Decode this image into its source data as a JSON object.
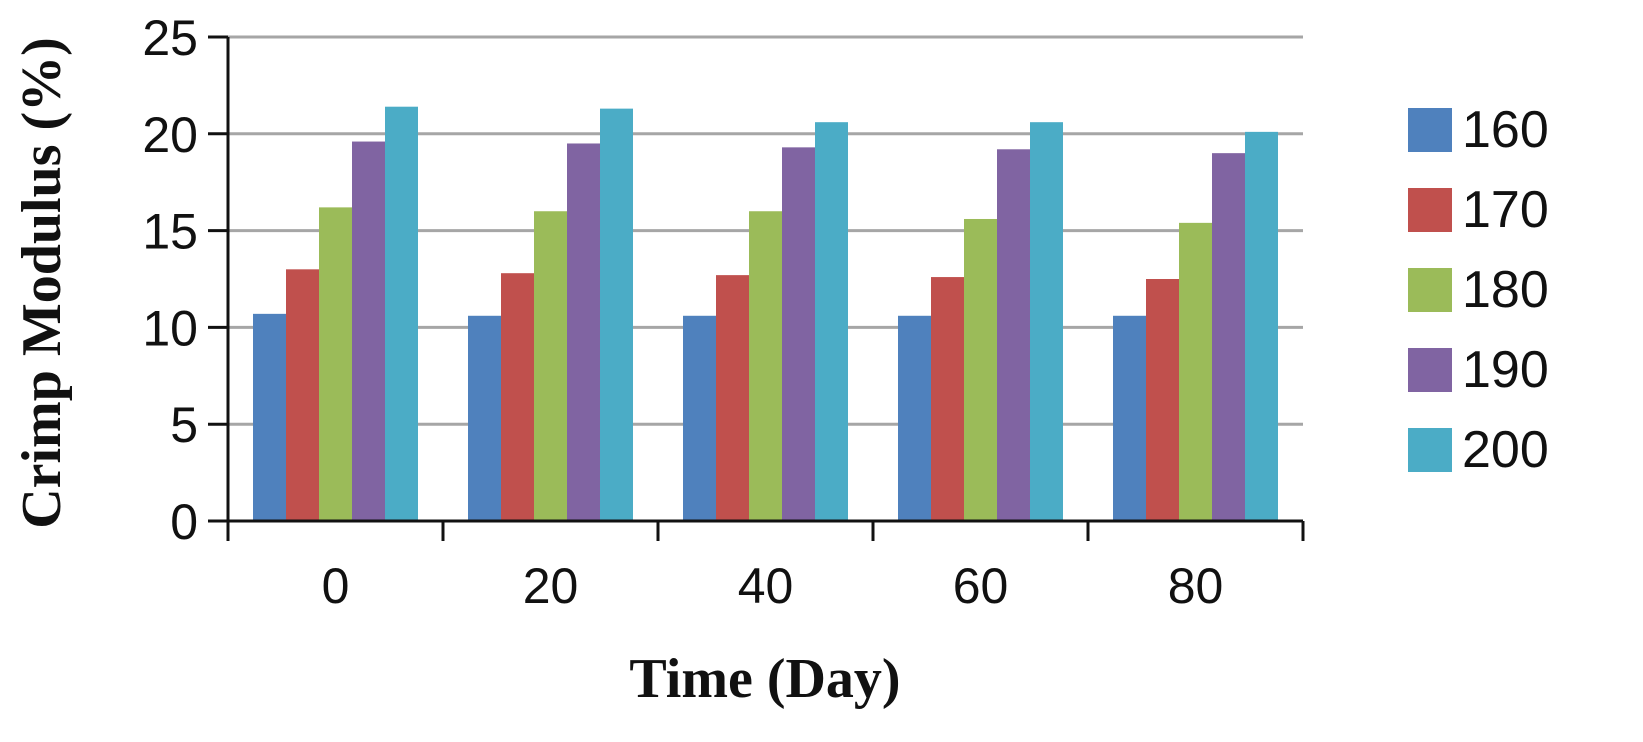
{
  "chart_data": {
    "type": "bar",
    "title": "",
    "xlabel": "Time (Day)",
    "ylabel": "Crimp Modulus (%)",
    "categories": [
      "0",
      "20",
      "40",
      "60",
      "80"
    ],
    "ylim": [
      0,
      25
    ],
    "yticks": [
      "0",
      "5",
      "10",
      "15",
      "20",
      "25"
    ],
    "grid": true,
    "legend_position": "right",
    "series": [
      {
        "name": "160",
        "color": "#4F81BD",
        "values": [
          10.7,
          10.6,
          10.6,
          10.6,
          10.6
        ]
      },
      {
        "name": "170",
        "color": "#C0504D",
        "values": [
          13.0,
          12.8,
          12.7,
          12.6,
          12.5
        ]
      },
      {
        "name": "180",
        "color": "#9BBB59",
        "values": [
          16.2,
          16.0,
          16.0,
          15.6,
          15.4
        ]
      },
      {
        "name": "190",
        "color": "#8064A2",
        "values": [
          19.6,
          19.5,
          19.3,
          19.2,
          19.0
        ]
      },
      {
        "name": "200",
        "color": "#4BACC6",
        "values": [
          21.4,
          21.3,
          20.6,
          20.6,
          20.1
        ]
      }
    ]
  }
}
